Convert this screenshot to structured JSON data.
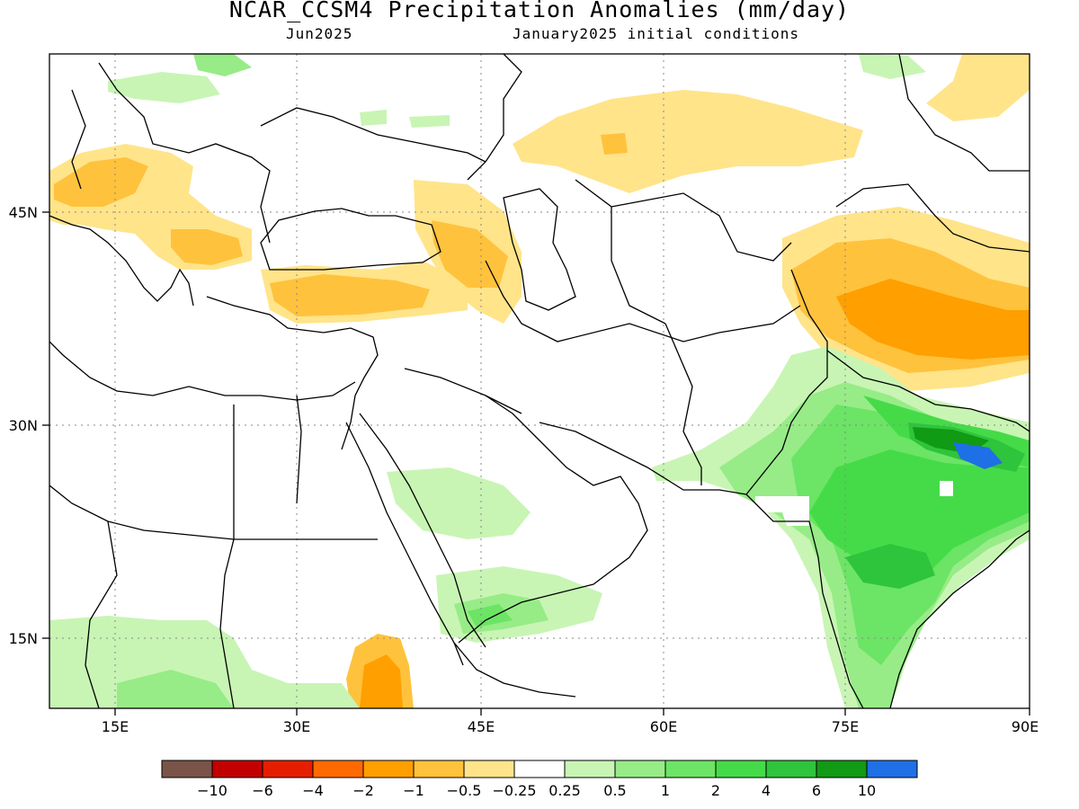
{
  "title": "NCAR_CCSM4 Precipitation Anomalies (mm/day)",
  "subtitle_left": "Jun2025",
  "subtitle_right": "January2025 initial conditions",
  "axes": {
    "x_ticks": [
      "15E",
      "30E",
      "45E",
      "60E",
      "75E",
      "90E"
    ],
    "y_ticks": [
      "45N",
      "30N",
      "15N"
    ]
  },
  "colorbar": {
    "labels": [
      "-10",
      "-6",
      "-4",
      "-2",
      "-1",
      "-0.5",
      "-0.25",
      "0.25",
      "0.5",
      "1",
      "2",
      "4",
      "6",
      "10"
    ],
    "colors": [
      "#7a5448",
      "#c20000",
      "#e61e00",
      "#ff6a00",
      "#ff9f00",
      "#ffc23c",
      "#ffe48a",
      "#ffffff",
      "#c8f5b4",
      "#97ec87",
      "#6ce465",
      "#45db48",
      "#2ec43c",
      "#119a14",
      "#1f6fe6"
    ]
  }
}
